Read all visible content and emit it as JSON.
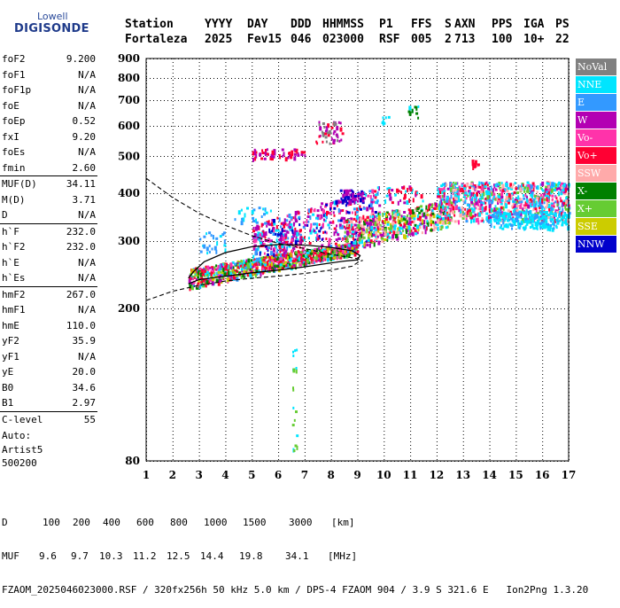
{
  "logo": {
    "line1": "Lowell",
    "line2": "DIGISONDE"
  },
  "header": {
    "labels": [
      "Station",
      "YYYY",
      "DAY",
      "DDD",
      "HHMMSS",
      "P1",
      "FFS",
      "S",
      "AXN",
      "PPS",
      "IGA",
      "PS"
    ],
    "values": [
      "Fortaleza",
      "2025",
      "Fev15",
      "046",
      "023000",
      "RSF",
      "005",
      "2",
      "713",
      "100",
      "10+",
      "22"
    ]
  },
  "parameters": [
    {
      "name": "foF2",
      "value": "9.200"
    },
    {
      "name": "foF1",
      "value": "N/A"
    },
    {
      "name": "foF1p",
      "value": "N/A"
    },
    {
      "name": "foE",
      "value": "N/A"
    },
    {
      "name": "foEp",
      "value": "0.52"
    },
    {
      "name": "fxI",
      "value": "9.20"
    },
    {
      "name": "foEs",
      "value": "N/A"
    },
    {
      "name": "fmin",
      "value": "2.60"
    },
    {
      "name": "MUF(D)",
      "value": "34.11",
      "sep": true
    },
    {
      "name": "M(D)",
      "value": "3.71"
    },
    {
      "name": "D",
      "value": "N/A"
    },
    {
      "name": "h`F",
      "value": "232.0",
      "sep": true
    },
    {
      "name": "h`F2",
      "value": "232.0"
    },
    {
      "name": "h`E",
      "value": "N/A"
    },
    {
      "name": "h`Es",
      "value": "N/A"
    },
    {
      "name": "hmF2",
      "value": "267.0",
      "sep": true
    },
    {
      "name": "hmF1",
      "value": "N/A"
    },
    {
      "name": "hmE",
      "value": "110.0"
    },
    {
      "name": "yF2",
      "value": "35.9"
    },
    {
      "name": "yF1",
      "value": "N/A"
    },
    {
      "name": "yE",
      "value": "20.0"
    },
    {
      "name": "B0",
      "value": "34.6"
    },
    {
      "name": "B1",
      "value": "2.97"
    },
    {
      "name": "C-level",
      "value": "55",
      "sep": true
    }
  ],
  "auto": {
    "line1": "Auto:",
    "line2": "Artist5",
    "line3": "500200"
  },
  "legend": [
    {
      "label": "NoVal",
      "color": "#808080"
    },
    {
      "label": "NNE",
      "color": "#00e5ff"
    },
    {
      "label": "E",
      "color": "#3399ff"
    },
    {
      "label": "W",
      "color": "#b300b3"
    },
    {
      "label": "Vo-",
      "color": "#ff33aa"
    },
    {
      "label": "Vo+",
      "color": "#ff0033"
    },
    {
      "label": "SSW",
      "color": "#ffaaaa"
    },
    {
      "label": "X-",
      "color": "#008000"
    },
    {
      "label": "X+",
      "color": "#66cc33"
    },
    {
      "label": "SSE",
      "color": "#cccc00"
    },
    {
      "label": "NNW",
      "color": "#0000cc"
    }
  ],
  "footer": {
    "d_label": "D",
    "d_values": [
      "100",
      "200",
      "400",
      "600",
      "800",
      "1000",
      "1500",
      "3000",
      "[km]"
    ],
    "muf_label": "MUF",
    "muf_values": [
      "9.6",
      "9.7",
      "10.3",
      "11.2",
      "12.5",
      "14.4",
      "19.8",
      "34.1",
      "[MHz]"
    ],
    "file_line": "FZAOM_2025046023000.RSF / 320fx256h 50 kHz 5.0 km / DPS-4 FZAOM 904 / 3.9 S 321.6 E   Ion2Png 1.3.20"
  },
  "chart_data": {
    "type": "scatter",
    "title": "",
    "xlabel": "",
    "ylabel": "",
    "xlim": [
      1,
      17
    ],
    "ylim": [
      80,
      900
    ],
    "y_scale": "log",
    "x_ticks": [
      "1",
      "2",
      "3",
      "4",
      "5",
      "6",
      "7",
      "8",
      "9",
      "10",
      "11",
      "12",
      "13",
      "14",
      "15",
      "16",
      "17"
    ],
    "y_ticks": [
      "80",
      "200",
      "300",
      "400",
      "500",
      "600",
      "700",
      "800",
      "900"
    ],
    "y_tick_values": [
      80,
      200,
      300,
      400,
      500,
      600,
      700,
      800,
      900
    ],
    "grid": true,
    "ordinary_trace": [
      {
        "f": 2.6,
        "h": 232
      },
      {
        "f": 3.0,
        "h": 238
      },
      {
        "f": 4.0,
        "h": 243
      },
      {
        "f": 5.0,
        "h": 248
      },
      {
        "f": 6.0,
        "h": 252
      },
      {
        "f": 7.0,
        "h": 257
      },
      {
        "f": 7.8,
        "h": 262
      },
      {
        "f": 8.5,
        "h": 266
      },
      {
        "f": 9.0,
        "h": 268
      },
      {
        "f": 9.1,
        "h": 275
      },
      {
        "f": 8.8,
        "h": 283
      },
      {
        "f": 8.0,
        "h": 289
      },
      {
        "f": 7.0,
        "h": 293
      },
      {
        "f": 6.0,
        "h": 294
      },
      {
        "f": 5.0,
        "h": 290
      },
      {
        "f": 4.0,
        "h": 280
      },
      {
        "f": 3.2,
        "h": 265
      },
      {
        "f": 2.8,
        "h": 250
      },
      {
        "f": 2.6,
        "h": 240
      }
    ],
    "profile": [
      {
        "f": 1.0,
        "h": 210
      },
      {
        "f": 2.0,
        "h": 222
      },
      {
        "f": 3.0,
        "h": 230
      },
      {
        "f": 4.0,
        "h": 236
      },
      {
        "f": 5.0,
        "h": 240
      },
      {
        "f": 6.0,
        "h": 243
      },
      {
        "f": 7.0,
        "h": 247
      },
      {
        "f": 8.0,
        "h": 252
      },
      {
        "f": 8.8,
        "h": 258
      },
      {
        "f": 9.1,
        "h": 266
      },
      {
        "f": 9.2,
        "h": 267
      }
    ],
    "profile_topside": [
      {
        "f": 1.0,
        "h": 438
      },
      {
        "f": 2.0,
        "h": 390
      },
      {
        "f": 3.0,
        "h": 355
      },
      {
        "f": 4.0,
        "h": 330
      },
      {
        "f": 5.0,
        "h": 310
      },
      {
        "f": 6.0,
        "h": 296
      },
      {
        "f": 7.0,
        "h": 287
      },
      {
        "f": 8.0,
        "h": 277
      },
      {
        "f": 9.0,
        "h": 270
      },
      {
        "f": 9.2,
        "h": 267
      }
    ],
    "echo_clusters": [
      {
        "f0": 2.6,
        "f1": 9.0,
        "h0": 225,
        "h1": 255,
        "hb0": 280,
        "hb1": 300,
        "n": 900,
        "colors": [
          "Vo+",
          "Vo+",
          "Vo-",
          "W",
          "X-",
          "NNE",
          "E",
          "X+",
          "SSE"
        ]
      },
      {
        "f0": 5.0,
        "f1": 9.8,
        "h0": 275,
        "h1": 330,
        "hb0": 300,
        "hb1": 420,
        "n": 500,
        "colors": [
          "W",
          "W",
          "Vo-",
          "Vo+",
          "NNE",
          "NNW",
          "E"
        ]
      },
      {
        "f0": 8.5,
        "f1": 12.5,
        "h0": 285,
        "h1": 345,
        "hb0": 330,
        "hb1": 385,
        "n": 500,
        "colors": [
          "Vo+",
          "X+",
          "SSE",
          "W",
          "X-",
          "SSW",
          "NNE"
        ]
      },
      {
        "f0": 12.0,
        "f1": 17.0,
        "h0": 340,
        "h1": 430,
        "hb0": 340,
        "hb1": 430,
        "n": 900,
        "colors": [
          "NNE",
          "NNE",
          "E",
          "W",
          "SSW",
          "Vo-",
          "X+",
          "Vo+"
        ]
      },
      {
        "f0": 14.0,
        "f1": 17.0,
        "h0": 325,
        "h1": 360,
        "hb0": 325,
        "hb1": 360,
        "n": 200,
        "colors": [
          "NNE",
          "NNE",
          "E"
        ]
      },
      {
        "f0": 5.0,
        "f1": 7.0,
        "h0": 495,
        "h1": 525,
        "hb0": 495,
        "hb1": 525,
        "n": 60,
        "colors": [
          "Vo+",
          "W"
        ]
      },
      {
        "f0": 7.4,
        "f1": 8.4,
        "h0": 540,
        "h1": 620,
        "hb0": 540,
        "hb1": 620,
        "n": 50,
        "colors": [
          "Vo+",
          "W",
          "NoVal"
        ]
      },
      {
        "f0": 8.3,
        "f1": 9.2,
        "h0": 380,
        "h1": 410,
        "hb0": 380,
        "hb1": 410,
        "n": 60,
        "colors": [
          "NNW",
          "W"
        ]
      },
      {
        "f0": 10.0,
        "f1": 11.5,
        "h0": 380,
        "h1": 420,
        "hb0": 380,
        "hb1": 420,
        "n": 40,
        "colors": [
          "Vo+",
          "W",
          "NNE"
        ]
      },
      {
        "f0": 13.3,
        "f1": 13.6,
        "h0": 470,
        "h1": 490,
        "hb0": 470,
        "hb1": 490,
        "n": 15,
        "colors": [
          "Vo+"
        ]
      },
      {
        "f0": 4.3,
        "f1": 5.8,
        "h0": 335,
        "h1": 370,
        "hb0": 335,
        "hb1": 370,
        "n": 25,
        "colors": [
          "NNE",
          "E"
        ]
      },
      {
        "f0": 3.0,
        "f1": 4.0,
        "h0": 280,
        "h1": 320,
        "hb0": 280,
        "hb1": 320,
        "n": 25,
        "colors": [
          "E",
          "NNE"
        ]
      },
      {
        "f0": 10.9,
        "f1": 11.3,
        "h0": 630,
        "h1": 680,
        "hb0": 630,
        "hb1": 680,
        "n": 12,
        "colors": [
          "NNE",
          "X-"
        ]
      },
      {
        "f0": 9.9,
        "f1": 10.2,
        "h0": 610,
        "h1": 640,
        "hb0": 610,
        "hb1": 640,
        "n": 8,
        "colors": [
          "NNE"
        ]
      },
      {
        "f0": 6.5,
        "f1": 6.7,
        "h0": 85,
        "h1": 160,
        "hb0": 85,
        "hb1": 160,
        "n": 20,
        "colors": [
          "NNE",
          "X+"
        ]
      }
    ]
  }
}
